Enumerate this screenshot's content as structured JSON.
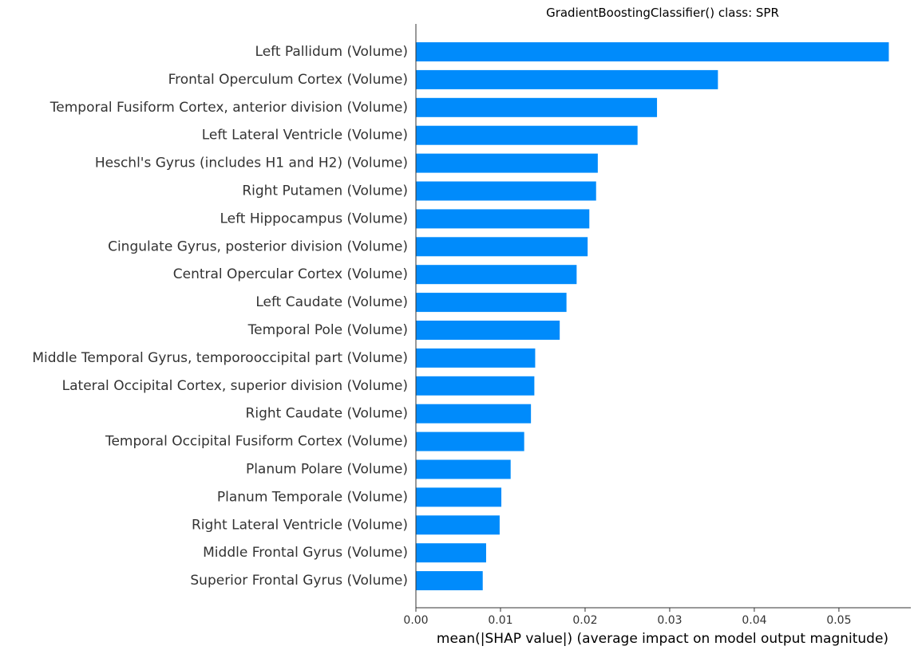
{
  "chart_data": {
    "type": "bar",
    "orientation": "horizontal",
    "title": "GradientBoostingClassifier() class: SPR",
    "xlabel": "mean(|SHAP value|) (average impact on model output magnitude)",
    "ylabel": "",
    "xlim": [
      0,
      0.0585
    ],
    "xticks": [
      0.0,
      0.01,
      0.02,
      0.03,
      0.04,
      0.05
    ],
    "xtick_labels": [
      "0.00",
      "0.01",
      "0.02",
      "0.03",
      "0.04",
      "0.05"
    ],
    "grid": false,
    "bar_color": "#008bfb",
    "categories": [
      "Left Pallidum (Volume)",
      "Frontal Operculum Cortex (Volume)",
      "Temporal Fusiform Cortex, anterior division (Volume)",
      "Left Lateral Ventricle (Volume)",
      "Heschl's Gyrus (includes H1 and H2) (Volume)",
      "Right Putamen (Volume)",
      "Left Hippocampus (Volume)",
      "Cingulate Gyrus, posterior division (Volume)",
      "Central Opercular Cortex (Volume)",
      "Left Caudate (Volume)",
      "Temporal Pole (Volume)",
      "Middle Temporal Gyrus, temporooccipital part (Volume)",
      "Lateral Occipital Cortex, superior division (Volume)",
      "Right Caudate (Volume)",
      "Temporal Occipital Fusiform Cortex (Volume)",
      "Planum Polare (Volume)",
      "Planum Temporale (Volume)",
      "Right Lateral Ventricle (Volume)",
      "Middle Frontal Gyrus (Volume)",
      "Superior Frontal Gyrus (Volume)"
    ],
    "values": [
      0.0559,
      0.0357,
      0.0285,
      0.0262,
      0.0215,
      0.0213,
      0.0205,
      0.0203,
      0.019,
      0.0178,
      0.017,
      0.0141,
      0.014,
      0.0136,
      0.0128,
      0.0112,
      0.0101,
      0.0099,
      0.0083,
      0.0079
    ]
  }
}
